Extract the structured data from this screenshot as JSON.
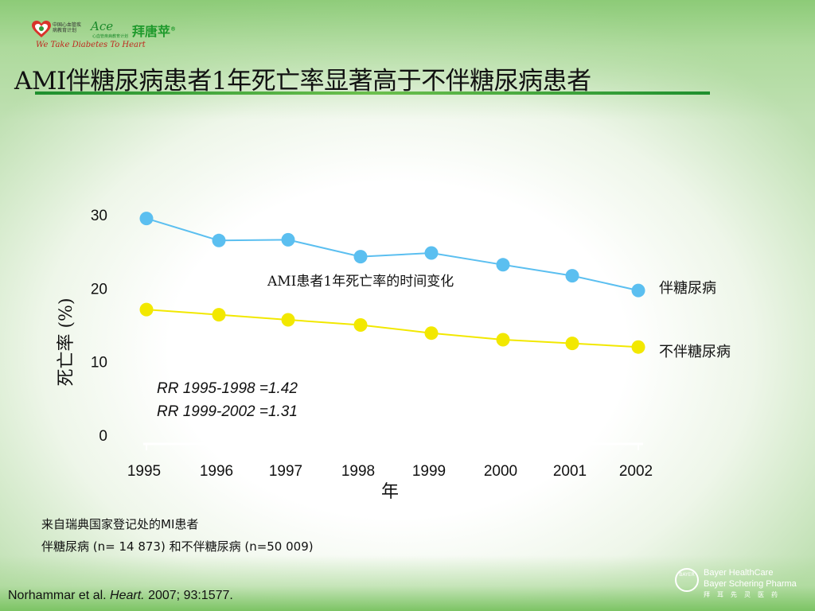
{
  "logo": {
    "org_small": "中国心血管疾病教育计划",
    "ace": "Ace",
    "ace_sub": "心血管疾病教育计划",
    "brand": "拜唐苹",
    "brand_mark": "®",
    "tagline": "We Take Diabetes To Heart"
  },
  "title": "AMI伴糖尿病患者1年死亡率显著高于不伴糖尿病患者",
  "chart_data": {
    "type": "line",
    "title": "AMI患者1年死亡率的时间变化",
    "xlabel": "年",
    "ylabel": "死亡率 (%)",
    "x": [
      "1995",
      "1996",
      "1997",
      "1998",
      "1999",
      "2000",
      "2001",
      "2002"
    ],
    "ylim": [
      0,
      30
    ],
    "yticks": [
      "0",
      "10",
      "20",
      "30"
    ],
    "grid": false,
    "series": [
      {
        "name": "伴糖尿病",
        "color": "#5bbff0",
        "values": [
          29.5,
          26.5,
          26.6,
          24.3,
          24.8,
          23.2,
          21.7,
          19.7
        ]
      },
      {
        "name": "不伴糖尿病",
        "color": "#f2e800",
        "values": [
          17.1,
          16.4,
          15.7,
          15.0,
          13.9,
          13.0,
          12.5,
          12.0
        ]
      }
    ],
    "annotations": [
      "RR 1995-1998 =1.42",
      "RR 1999-2002 =1.31"
    ]
  },
  "notes": {
    "line1": "来自瑞典国家登记处的MI患者",
    "line2": "伴糖尿病 (n= 14 873) 和不伴糖尿病 (n=50 009)"
  },
  "citation": {
    "authors": "Norhammar et al.",
    "journal": "Heart.",
    "details": "2007; 93:1577."
  },
  "footer_logo": {
    "bayer_mark": "BAYER",
    "line1": "Bayer HealthCare",
    "line2": "Bayer Schering Pharma",
    "cn": "拜耳先灵医药"
  }
}
